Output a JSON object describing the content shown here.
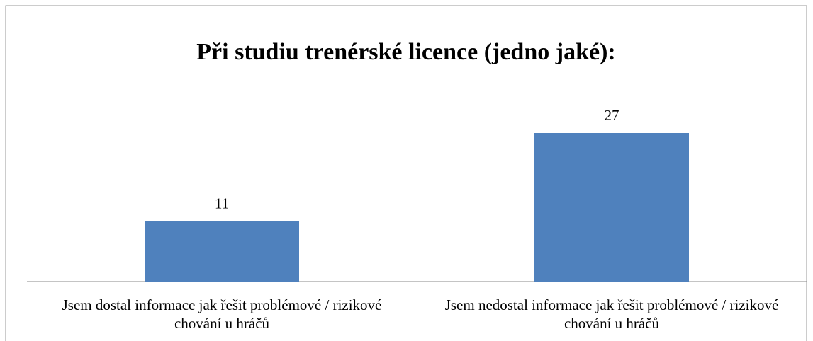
{
  "chart_data": {
    "type": "bar",
    "title": "Při studiu trenérské licence (jedno jaké):",
    "categories": [
      "Jsem dostal informace jak řešit problémové / rizikové chování u hráčů",
      "Jsem nedostal informace jak řešit problémové / rizikové chování u hráčů"
    ],
    "values": [
      11,
      27
    ],
    "color": "#4f81bd"
  }
}
